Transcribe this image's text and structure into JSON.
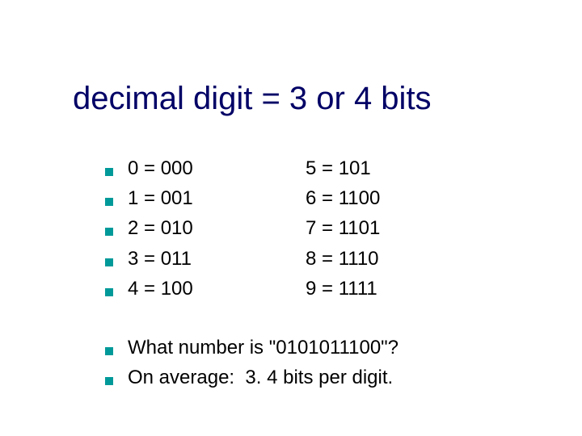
{
  "title": "decimal digit = 3 or 4 bits",
  "rows": [
    {
      "left": "0 = 000",
      "right": "5 = 101"
    },
    {
      "left": "1 = 001",
      "right": "6 = 1100"
    },
    {
      "left": "2 = 010",
      "right": "7 = 1101"
    },
    {
      "left": "3 = 011",
      "right": "8 = 1110"
    },
    {
      "left": "4 = 100",
      "right": "9 = 1111"
    }
  ],
  "lines": [
    "What number is \"0101011100\"?",
    "On average:  3. 4 bits per digit."
  ],
  "colors": {
    "title": "#000066",
    "bullet": "#009999",
    "text": "#000000",
    "background": "#ffffff"
  },
  "fontsize": {
    "title": 40,
    "body": 24
  }
}
